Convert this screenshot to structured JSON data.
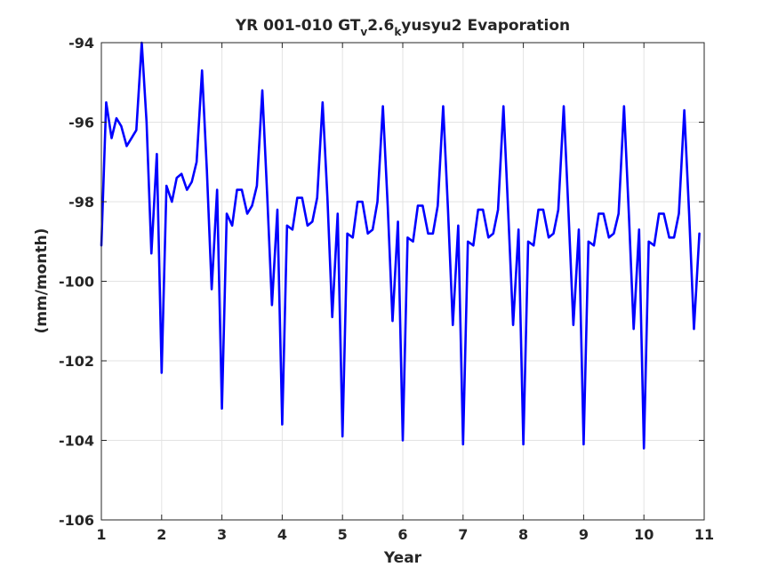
{
  "chart_data": {
    "type": "line",
    "title": {
      "prefix": "YR 001-010 GT",
      "sub1": "v",
      "middle": "2.6",
      "sub2": "k",
      "suffix": "yusyu2 Evaporation"
    },
    "xlabel": "Year",
    "ylabel": "(mm/month)",
    "xlim": [
      1,
      11
    ],
    "ylim": [
      -106,
      -94
    ],
    "xticks": [
      1,
      2,
      3,
      4,
      5,
      6,
      7,
      8,
      9,
      10,
      11
    ],
    "yticks": [
      -94,
      -96,
      -98,
      -100,
      -102,
      -104,
      -106
    ],
    "grid": true,
    "series": [
      {
        "color": "#0000ff",
        "x": [
          1.0,
          1.08,
          1.17,
          1.25,
          1.33,
          1.42,
          1.5,
          1.58,
          1.67,
          1.75,
          1.83,
          1.92,
          2.0,
          2.08,
          2.17,
          2.25,
          2.33,
          2.42,
          2.5,
          2.58,
          2.67,
          2.75,
          2.83,
          2.92,
          3.0,
          3.08,
          3.17,
          3.25,
          3.33,
          3.42,
          3.5,
          3.58,
          3.67,
          3.75,
          3.83,
          3.92,
          4.0,
          4.08,
          4.17,
          4.25,
          4.33,
          4.42,
          4.5,
          4.58,
          4.67,
          4.75,
          4.83,
          4.92,
          5.0,
          5.08,
          5.17,
          5.25,
          5.33,
          5.42,
          5.5,
          5.58,
          5.67,
          5.75,
          5.83,
          5.92,
          6.0,
          6.08,
          6.17,
          6.25,
          6.33,
          6.42,
          6.5,
          6.58,
          6.67,
          6.75,
          6.83,
          6.92,
          7.0,
          7.08,
          7.17,
          7.25,
          7.33,
          7.42,
          7.5,
          7.58,
          7.67,
          7.75,
          7.83,
          7.92,
          8.0,
          8.08,
          8.17,
          8.25,
          8.33,
          8.42,
          8.5,
          8.58,
          8.67,
          8.75,
          8.83,
          8.92,
          9.0,
          9.08,
          9.17,
          9.25,
          9.33,
          9.42,
          9.5,
          9.58,
          9.67,
          9.75,
          9.83,
          9.92,
          10.0,
          10.08,
          10.17,
          10.25,
          10.33,
          10.42,
          10.5,
          10.58,
          10.67,
          10.75,
          10.83,
          10.92
        ],
        "y": [
          -99.1,
          -95.5,
          -96.4,
          -95.9,
          -96.1,
          -96.6,
          -96.4,
          -96.2,
          -94.0,
          -96.0,
          -99.3,
          -96.8,
          -102.3,
          -97.6,
          -98.0,
          -97.4,
          -97.3,
          -97.7,
          -97.5,
          -97.0,
          -94.7,
          -97.2,
          -100.2,
          -97.7,
          -103.2,
          -98.3,
          -98.6,
          -97.7,
          -97.7,
          -98.3,
          -98.1,
          -97.6,
          -95.2,
          -97.8,
          -100.6,
          -98.2,
          -103.6,
          -98.6,
          -98.7,
          -97.9,
          -97.9,
          -98.6,
          -98.5,
          -97.9,
          -95.5,
          -97.9,
          -100.9,
          -98.3,
          -103.9,
          -98.8,
          -98.9,
          -98.0,
          -98.0,
          -98.8,
          -98.7,
          -98.0,
          -95.6,
          -98.1,
          -101.0,
          -98.5,
          -104.0,
          -98.9,
          -99.0,
          -98.1,
          -98.1,
          -98.8,
          -98.8,
          -98.1,
          -95.6,
          -98.2,
          -101.1,
          -98.6,
          -104.1,
          -99.0,
          -99.1,
          -98.2,
          -98.2,
          -98.9,
          -98.8,
          -98.2,
          -95.6,
          -98.3,
          -101.1,
          -98.7,
          -104.1,
          -99.0,
          -99.1,
          -98.2,
          -98.2,
          -98.9,
          -98.8,
          -98.2,
          -95.6,
          -98.3,
          -101.1,
          -98.7,
          -104.1,
          -99.0,
          -99.1,
          -98.3,
          -98.3,
          -98.9,
          -98.8,
          -98.3,
          -95.6,
          -98.3,
          -101.2,
          -98.7,
          -104.2,
          -99.0,
          -99.1,
          -98.3,
          -98.3,
          -98.9,
          -98.9,
          -98.3,
          -95.7,
          -98.3,
          -101.2,
          -98.8
        ]
      }
    ]
  }
}
